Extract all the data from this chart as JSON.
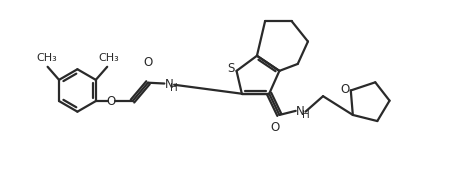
{
  "bg_color": "#ffffff",
  "line_color": "#2a2a2a",
  "line_width": 1.6,
  "font_size": 8.5,
  "figsize": [
    4.69,
    1.85
  ],
  "dpi": 100,
  "xlim": [
    0,
    10.0
  ],
  "ylim": [
    -0.5,
    4.0
  ]
}
